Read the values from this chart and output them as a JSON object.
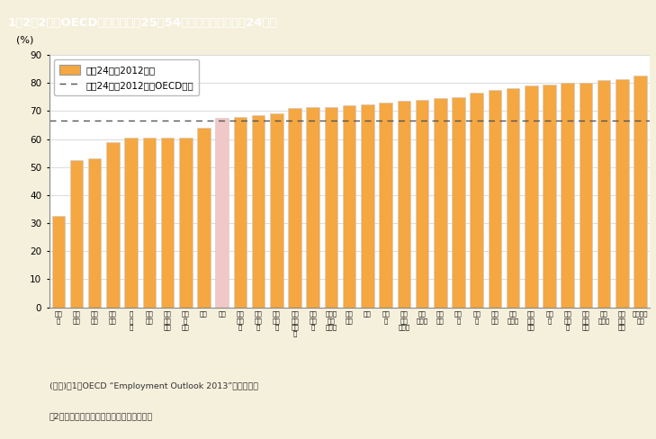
{
  "title": "1－2－2図　OECD諸国の女性（25～54歳）の就業率（平成24年）",
  "ylabel": "(%)",
  "ylim": [
    0,
    90
  ],
  "yticks": [
    0,
    10,
    20,
    30,
    40,
    50,
    60,
    70,
    80,
    90
  ],
  "oecd_average": 66.5,
  "bar_color": "#F5A742",
  "bar_color_highlight": "#F0C8C8",
  "legend_bar_label": "平成24年（2012年）",
  "legend_line_label": "平成24年（2012年）OECD平均",
  "background_color": "#F5F0DC",
  "plot_bg_color": "#FFFFFF",
  "note1": "(備考)　1．OECD “Employment Outlook 2013”より作成。",
  "note2": "　2．就業率は「就業者数／人口」で計算。",
  "categories": [
    "トル\nコ",
    "メキ\nシコ",
    "ギリ\nシャ",
    "イタ\nリア",
    "チ\n韓\n国",
    "スペ\nイン",
    "アイ\nルガ\nンド",
    "ハン\nガ\nリー",
    "日本",
    "米国",
    "スロ\nバキ\nア",
    "ポー\nラン\nド",
    "イス\nラエ\nル",
    "オー\nスト\nラリ\nア",
    "ポル\nトガ\nル",
    "ニュー\nジー\nランド",
    "ベル\nギー",
    "英国",
    "チェ\nコ",
    "ルク\nセン\nブルク",
    "エス\nトニア",
    "フラ\nンス",
    "カナ\nダ",
    "ドイ\nツ",
    "オラ\nンダ",
    "デン\nマーク",
    "フィ\nンラ\nンド",
    "スイ\nス",
    "スロ\nベニ\nア",
    "オー\nスト\nリア",
    "ノル\nウェー",
    "アイ\nスラ\nンド",
    "スウェー\nデン"
  ],
  "values": [
    32.5,
    52.5,
    53.0,
    59.0,
    60.5,
    60.5,
    60.5,
    60.5,
    64.0,
    67.5,
    68.0,
    68.5,
    69.0,
    71.0,
    71.5,
    71.5,
    72.0,
    72.5,
    73.0,
    73.5,
    74.0,
    74.5,
    75.0,
    76.5,
    77.5,
    78.0,
    79.0,
    79.5,
    80.0,
    80.0,
    81.0,
    81.5,
    82.5
  ],
  "highlight_index": 9
}
